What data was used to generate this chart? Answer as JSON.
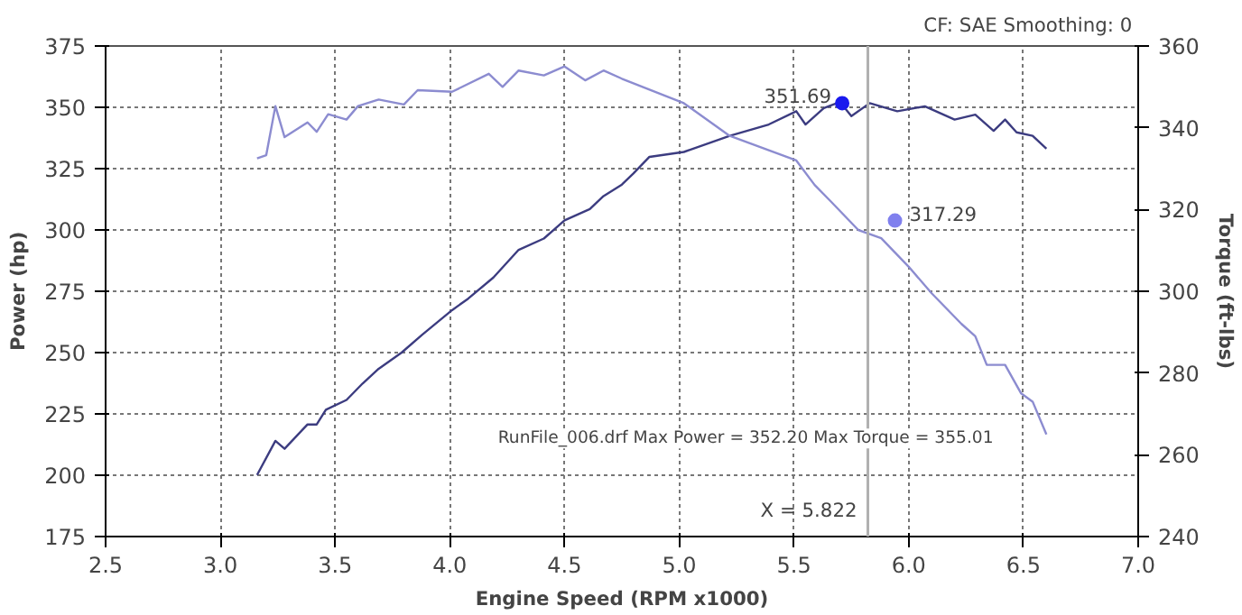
{
  "chart_data": {
    "type": "line",
    "xlabel": "Engine Speed (RPM x1000)",
    "ylabel": "Power (hp)",
    "y2label": "Torque (ft-lbs)",
    "xlim": [
      2.5,
      7.0
    ],
    "xticks": [
      2.5,
      {
        "value": 3,
        "label": "3.0"
      },
      3.5,
      {
        "value": 4,
        "label": "4.0"
      },
      4.5,
      {
        "value": 5,
        "label": "5.0"
      },
      5.5,
      {
        "value": 6,
        "label": "6.0"
      },
      6.5,
      {
        "value": 7,
        "label": "7.0"
      }
    ],
    "ylim": [
      175,
      375
    ],
    "yticks": [
      175,
      200,
      225,
      250,
      275,
      300,
      325,
      350,
      375
    ],
    "y2lim": [
      240,
      360
    ],
    "y2ticks": [
      240,
      260,
      280,
      300,
      320,
      340,
      360
    ],
    "grid": true,
    "line_style": "solid",
    "marker": "none",
    "series": [
      {
        "color": "#3c3c80",
        "x": [
          3.16,
          3.24,
          3.28,
          3.38,
          3.42,
          3.46,
          3.55,
          3.62,
          3.69,
          3.79,
          3.88,
          4.01,
          4.08,
          4.19,
          4.3,
          4.41,
          4.5,
          4.61,
          4.67,
          4.75,
          4.8,
          4.87,
          5.02,
          5.22,
          5.39,
          5.51,
          5.55,
          5.63,
          5.7,
          5.75,
          5.83,
          5.95,
          6.07,
          6.2,
          6.29,
          6.37,
          6.42,
          6.47,
          6.54,
          6.6
        ],
        "values": [
          200.1,
          214,
          210.8,
          220.7,
          220.7,
          226.7,
          230.7,
          237.4,
          243.4,
          250,
          257.3,
          267.3,
          272,
          280.6,
          291.9,
          296.5,
          303.9,
          308.5,
          313.8,
          318.5,
          323,
          329.8,
          331.8,
          338.4,
          343,
          348.4,
          343,
          349.7,
          352.2,
          346.4,
          351.7,
          348.4,
          350.4,
          345,
          347,
          340.4,
          345,
          339.8,
          338.4,
          333.1
        ]
      },
      {
        "color": "#8c8cd0",
        "axis": "y2",
        "x": [
          3.16,
          3.2,
          3.24,
          3.28,
          3.38,
          3.42,
          3.47,
          3.55,
          3.6,
          3.69,
          3.8,
          3.86,
          4.01,
          4.17,
          4.23,
          4.3,
          4.41,
          4.5,
          4.59,
          4.67,
          4.75,
          5.02,
          5.22,
          5.51,
          5.59,
          5.66,
          5.78,
          5.88,
          6.0,
          6.1,
          6.23,
          6.29,
          6.34,
          6.42,
          6.49,
          6.54,
          6.6
        ],
        "values": [
          332.5,
          333.3,
          345.3,
          337.7,
          341.3,
          339,
          343.3,
          342,
          345.3,
          346.9,
          345.7,
          349.2,
          348.8,
          353.2,
          350,
          354,
          352.8,
          355,
          351.6,
          354,
          352,
          346,
          338,
          332,
          326,
          322,
          315,
          313,
          306,
          299.5,
          292,
          289,
          282,
          282,
          275,
          273,
          265
        ]
      },
      {
        "type": "scatter",
        "marker": "circle",
        "color": "#1a1aee",
        "x": [
          5.71
        ],
        "values": [
          351.69
        ],
        "value_labels": [
          "351.69"
        ]
      },
      {
        "type": "scatter",
        "marker": "circle",
        "color": "#8080ee",
        "axis": "y2",
        "x": [
          5.94
        ],
        "values": [
          317.29
        ],
        "value_labels": [
          "317.29"
        ]
      }
    ],
    "ref_lines": [
      {
        "axis": "x",
        "value": 5.822,
        "label": "X = 5.822",
        "color": "#b0b0b0"
      }
    ],
    "annotations": [
      "CF: SAE  Smoothing: 0",
      "RunFile_006.drf Max Power = 352.20     Max Torque = 355.01"
    ]
  }
}
